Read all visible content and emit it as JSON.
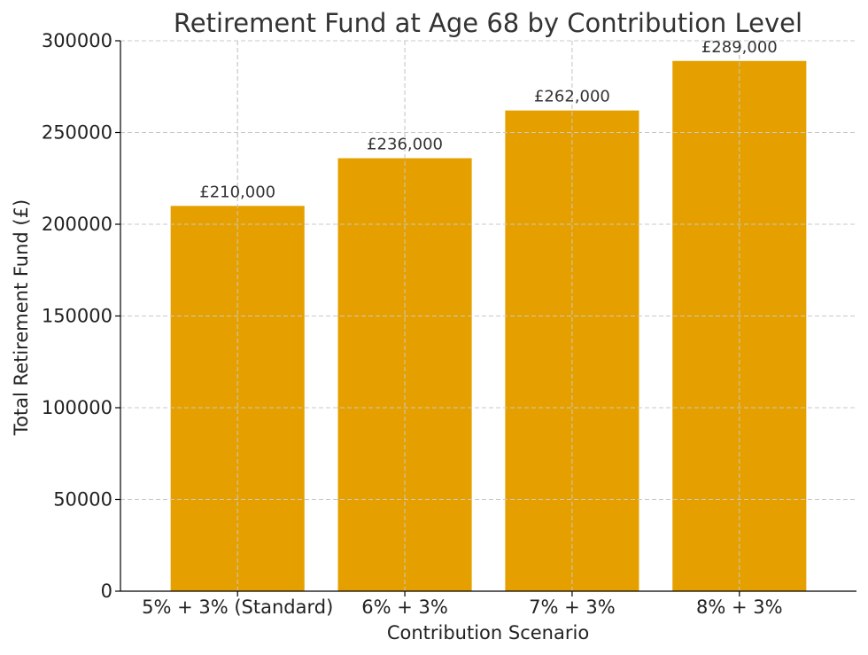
{
  "chart_data": {
    "type": "bar",
    "title": "Retirement Fund at Age 68 by Contribution Level",
    "xlabel": "Contribution Scenario",
    "ylabel": "Total Retirement Fund (£)",
    "categories": [
      "5% + 3% (Standard)",
      "6% + 3%",
      "7% + 3%",
      "8% + 3%"
    ],
    "values": [
      210000,
      236000,
      262000,
      289000
    ],
    "data_labels": [
      "£210,000",
      "£236,000",
      "£262,000",
      "£289,000"
    ],
    "ylim": [
      0,
      300000
    ],
    "yticks": [
      0,
      50000,
      100000,
      150000,
      200000,
      250000,
      300000
    ],
    "ytick_labels": [
      "0",
      "50000",
      "100000",
      "150000",
      "200000",
      "250000",
      "300000"
    ],
    "grid": true,
    "bar_color": "#e5a000"
  }
}
